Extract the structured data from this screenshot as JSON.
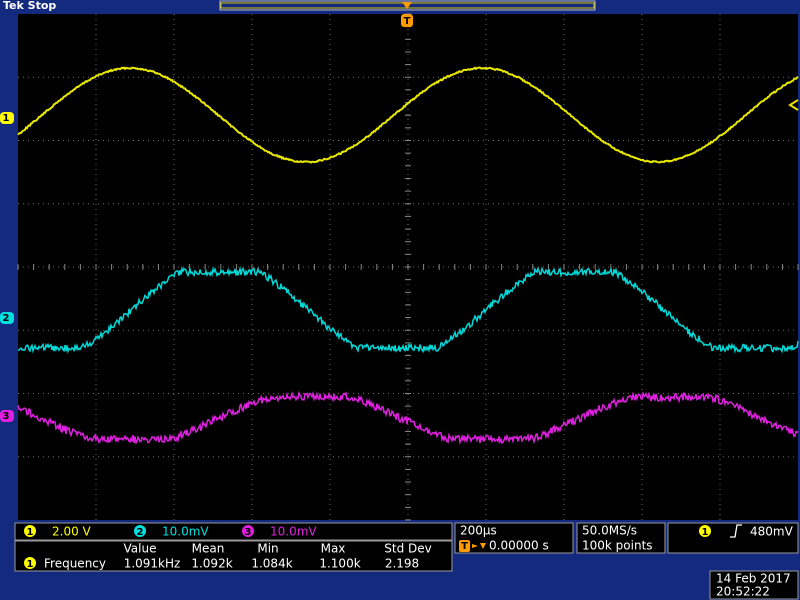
{
  "header": {
    "status": "Tek Stop",
    "trigger_marker": "T"
  },
  "channel_markers": [
    "1",
    "2",
    "3"
  ],
  "channels": [
    {
      "number": "1",
      "scale": "2.00 V"
    },
    {
      "number": "2",
      "scale": "10.0mV"
    },
    {
      "number": "3",
      "scale": "10.0mV"
    }
  ],
  "measurements": {
    "headers": [
      "Value",
      "Mean",
      "Min",
      "Max",
      "Std Dev"
    ],
    "rows": [
      {
        "source": "1",
        "name": "Frequency",
        "values": [
          "1.091kHz",
          "1.092k",
          "1.084k",
          "1.100k",
          "2.198"
        ]
      }
    ]
  },
  "timebase": {
    "scale": "200µs",
    "marker": "T",
    "position": "0.00000 s"
  },
  "acquisition": {
    "rate": "50.0MS/s",
    "length": "100k points"
  },
  "trigger": {
    "source": "1",
    "level": "480mV"
  },
  "datetime": {
    "date": "14 Feb 2017",
    "time": "20:52:22"
  }
}
